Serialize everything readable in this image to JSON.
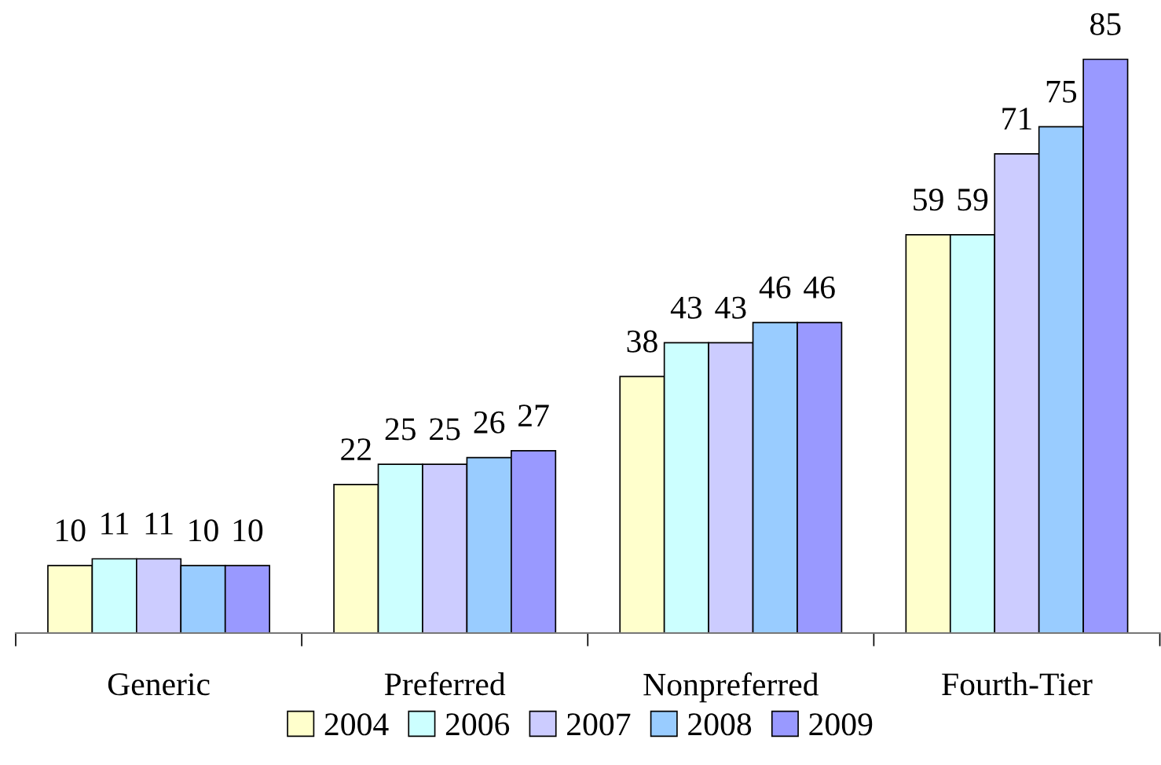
{
  "chart_data": {
    "type": "bar",
    "categories": [
      "Generic",
      "Preferred",
      "Nonpreferred",
      "Fourth-Tier"
    ],
    "series": [
      {
        "name": "2004",
        "color": "#ffffcc",
        "values": [
          10,
          22,
          38,
          59
        ]
      },
      {
        "name": "2006",
        "color": "#ccffff",
        "values": [
          11,
          25,
          43,
          59
        ]
      },
      {
        "name": "2007",
        "color": "#ccccff",
        "values": [
          11,
          25,
          43,
          71
        ]
      },
      {
        "name": "2008",
        "color": "#99ccff",
        "values": [
          10,
          26,
          46,
          75
        ]
      },
      {
        "name": "2009",
        "color": "#9999ff",
        "values": [
          10,
          27,
          46,
          85
        ]
      }
    ],
    "data_labels": true,
    "grid": false,
    "legend": "bottom",
    "tick_labels": "x"
  }
}
